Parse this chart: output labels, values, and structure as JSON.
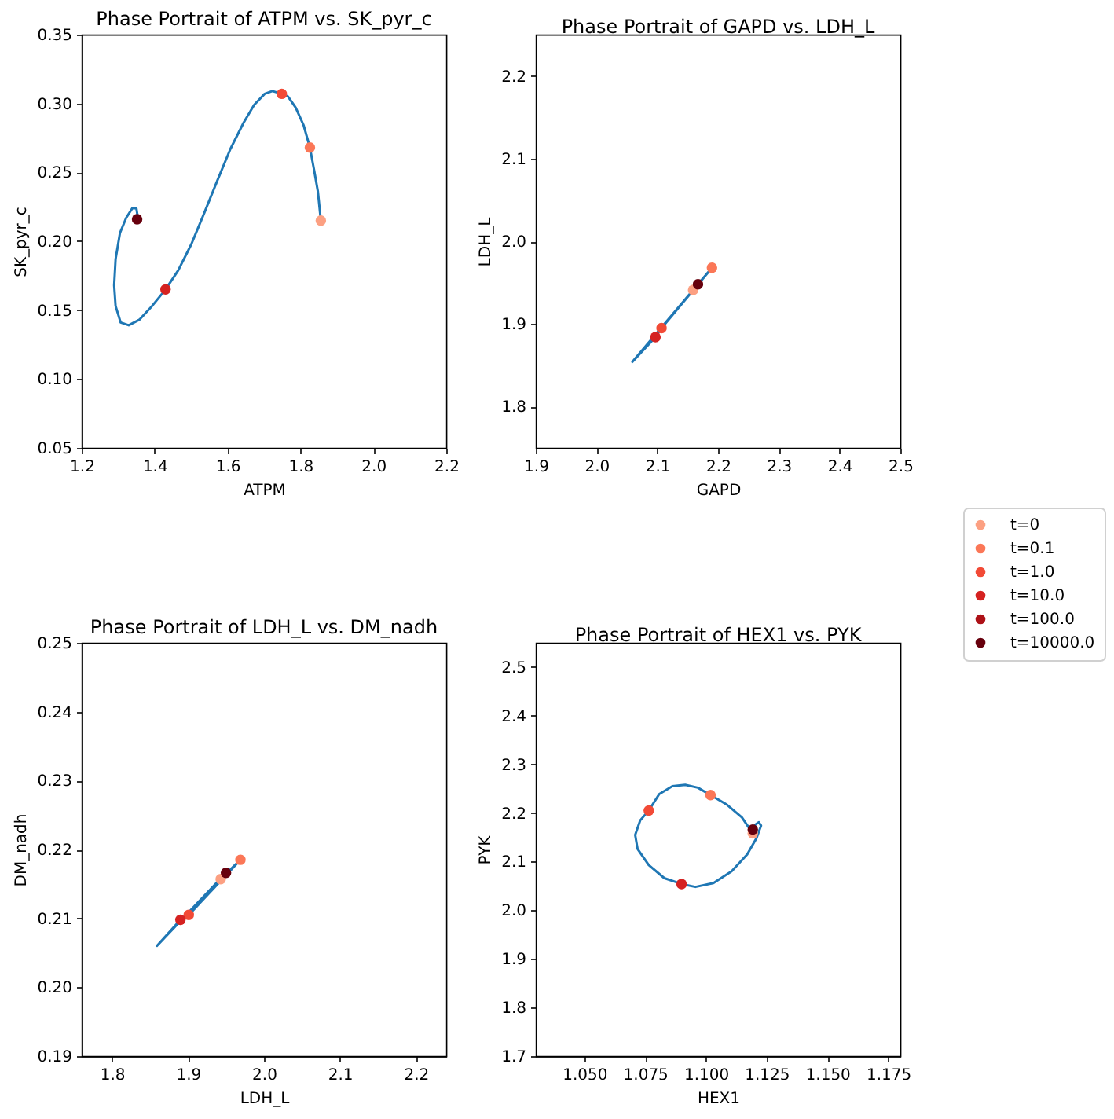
{
  "chart_data": [
    {
      "type": "scatter",
      "title": "Phase Portrait of ATPM vs. SK_pyr_c",
      "xlabel": "ATPM",
      "ylabel": "SK_pyr_c",
      "xlim": [
        1.2,
        2.2
      ],
      "ylim": [
        0.05,
        0.35
      ],
      "xticks": [
        1.2,
        1.4,
        1.6,
        1.8,
        {
          "value": 2.0,
          "label": "2.0"
        },
        2.2
      ],
      "yticks": [
        0.05,
        {
          "value": 0.1,
          "label": "0.10"
        },
        0.15,
        {
          "value": 0.2,
          "label": "0.20"
        },
        0.25,
        {
          "value": 0.3,
          "label": "0.30"
        },
        0.35
      ],
      "marker": "circle",
      "series": [
        {
          "type": "line",
          "color": "#1f77b4",
          "marker": "none",
          "x": [
            1.856,
            1.848,
            1.838,
            1.826,
            1.809,
            1.787,
            1.766,
            1.749,
            1.723,
            1.702,
            1.673,
            1.644,
            1.608,
            1.572,
            1.537,
            1.501,
            1.465,
            1.43,
            1.393,
            1.358,
            1.329,
            1.307,
            1.293,
            1.289,
            1.293,
            1.305,
            1.322,
            1.339,
            1.35,
            1.353,
            1.352
          ],
          "values": [
            0.215,
            0.236,
            0.251,
            0.268,
            0.284,
            0.297,
            0.305,
            0.307,
            0.309,
            0.307,
            0.299,
            0.286,
            0.267,
            0.244,
            0.221,
            0.198,
            0.179,
            0.165,
            0.153,
            0.143,
            0.139,
            0.141,
            0.153,
            0.168,
            0.187,
            0.206,
            0.217,
            0.224,
            0.224,
            0.219,
            0.216
          ]
        },
        {
          "color": "#fca082",
          "x": [
            1.856
          ],
          "values": [
            0.215
          ]
        },
        {
          "color": "#fb7757",
          "x": [
            1.826
          ],
          "values": [
            0.268
          ]
        },
        {
          "color": "#f24a36",
          "x": [
            1.749
          ],
          "values": [
            0.307
          ]
        },
        {
          "color": "#d52221",
          "x": [
            1.43
          ],
          "values": [
            0.165
          ]
        },
        {
          "color": "#67000d",
          "x": [
            1.352
          ],
          "values": [
            0.216
          ]
        }
      ]
    },
    {
      "type": "scatter",
      "title": "Phase Portrait of GAPD vs. LDH_L",
      "xlabel": "GAPD",
      "ylabel": "LDH_L",
      "xlim": [
        1.9,
        2.5
      ],
      "ylim": [
        1.75,
        2.25
      ],
      "xticks": [
        1.9,
        {
          "value": 2.0,
          "label": "2.0"
        },
        2.1,
        2.2,
        2.3,
        2.4,
        2.5
      ],
      "yticks": [
        1.8,
        1.9,
        {
          "value": 2.0,
          "label": "2.0"
        },
        2.1,
        2.2
      ],
      "marker": "circle",
      "legend": "right",
      "series": [
        {
          "type": "line",
          "color": "#1f77b4",
          "marker": "none",
          "x": [
            2.159,
            2.19,
            2.107,
            2.097,
            2.059,
            2.167
          ],
          "values": [
            1.941,
            1.968,
            1.895,
            1.884,
            1.854,
            1.948
          ]
        },
        {
          "name": "t=0",
          "color": "#fca082",
          "x": [
            2.159
          ],
          "values": [
            1.941
          ]
        },
        {
          "name": "t=0.1",
          "color": "#fb7757",
          "x": [
            2.19
          ],
          "values": [
            1.968
          ]
        },
        {
          "name": "t=1.0",
          "color": "#f24a36",
          "x": [
            2.107
          ],
          "values": [
            1.895
          ]
        },
        {
          "name": "t=10.0",
          "color": "#d52221",
          "x": [
            2.097
          ],
          "values": [
            1.884
          ]
        },
        {
          "name": "t=100.0",
          "color": "#ad1117",
          "x": [
            null
          ],
          "values": [
            null
          ]
        },
        {
          "name": "t=10000.0",
          "color": "#67000d",
          "x": [
            2.167
          ],
          "values": [
            1.948
          ]
        }
      ]
    },
    {
      "type": "scatter",
      "title": "Phase Portrait of LDH_L vs. DM_nadh",
      "xlabel": "LDH_L",
      "ylabel": "DM_nadh",
      "xlim": [
        1.76,
        2.24
      ],
      "ylim": [
        0.19,
        0.25
      ],
      "xticks": [
        1.8,
        1.9,
        {
          "value": 2.0,
          "label": "2.0"
        },
        2.1,
        2.2
      ],
      "yticks": [
        0.19,
        {
          "value": 0.2,
          "label": "0.20"
        },
        0.21,
        0.22,
        0.23,
        0.24,
        0.25
      ],
      "marker": "circle",
      "series": [
        {
          "type": "line",
          "color": "#1f77b4",
          "marker": "none",
          "x": [
            1.943,
            1.969,
            1.901,
            1.89,
            1.859,
            1.95
          ],
          "values": [
            0.2157,
            0.2185,
            0.2105,
            0.2098,
            0.206,
            0.2166
          ]
        },
        {
          "color": "#fca082",
          "x": [
            1.943
          ],
          "values": [
            0.2157
          ]
        },
        {
          "color": "#fb7757",
          "x": [
            1.969
          ],
          "values": [
            0.2185
          ]
        },
        {
          "color": "#f24a36",
          "x": [
            1.901
          ],
          "values": [
            0.2105
          ]
        },
        {
          "color": "#d52221",
          "x": [
            1.89
          ],
          "values": [
            0.2098
          ]
        },
        {
          "color": "#67000d",
          "x": [
            1.95
          ],
          "values": [
            0.2166
          ]
        }
      ]
    },
    {
      "type": "scatter",
      "title": "Phase Portrait of HEX1 vs. PYK",
      "xlabel": "HEX1",
      "ylabel": "PYK",
      "xlim": [
        1.03,
        1.18
      ],
      "ylim": [
        1.7,
        2.55
      ],
      "xticks": [
        {
          "value": 1.05,
          "label": "1.050"
        },
        1.075,
        {
          "value": 1.1,
          "label": "1.100"
        },
        1.125,
        {
          "value": 1.15,
          "label": "1.150"
        },
        1.175
      ],
      "yticks": [
        1.7,
        1.8,
        1.9,
        {
          "value": 2.0,
          "label": "2.0"
        },
        2.1,
        2.2,
        2.3,
        2.4,
        2.5
      ],
      "marker": "circle",
      "series": [
        {
          "type": "line",
          "color": "#1f77b4",
          "marker": "none",
          "x": [
            1.1193,
            1.1148,
            1.1084,
            1.1019,
            1.0967,
            1.0915,
            1.0862,
            1.0808,
            1.0765,
            1.073,
            1.0709,
            1.0719,
            1.0765,
            1.0829,
            1.09,
            1.0957,
            1.1031,
            1.1106,
            1.117,
            1.1208,
            1.1227,
            1.1218,
            1.1203,
            1.1193
          ],
          "values": [
            2.158,
            2.191,
            2.218,
            2.237,
            2.252,
            2.258,
            2.255,
            2.239,
            2.205,
            2.185,
            2.155,
            2.126,
            2.093,
            2.066,
            2.054,
            2.048,
            2.056,
            2.08,
            2.115,
            2.148,
            2.174,
            2.181,
            2.176,
            2.166
          ]
        },
        {
          "color": "#fca082",
          "x": [
            1.1193
          ],
          "values": [
            2.158
          ]
        },
        {
          "color": "#fb7757",
          "x": [
            1.1019
          ],
          "values": [
            2.237
          ]
        },
        {
          "color": "#f24a36",
          "x": [
            1.0765
          ],
          "values": [
            2.205
          ]
        },
        {
          "color": "#d52221",
          "x": [
            1.09
          ],
          "values": [
            2.054
          ]
        },
        {
          "color": "#67000d",
          "x": [
            1.1193
          ],
          "values": [
            2.166
          ]
        }
      ]
    }
  ]
}
